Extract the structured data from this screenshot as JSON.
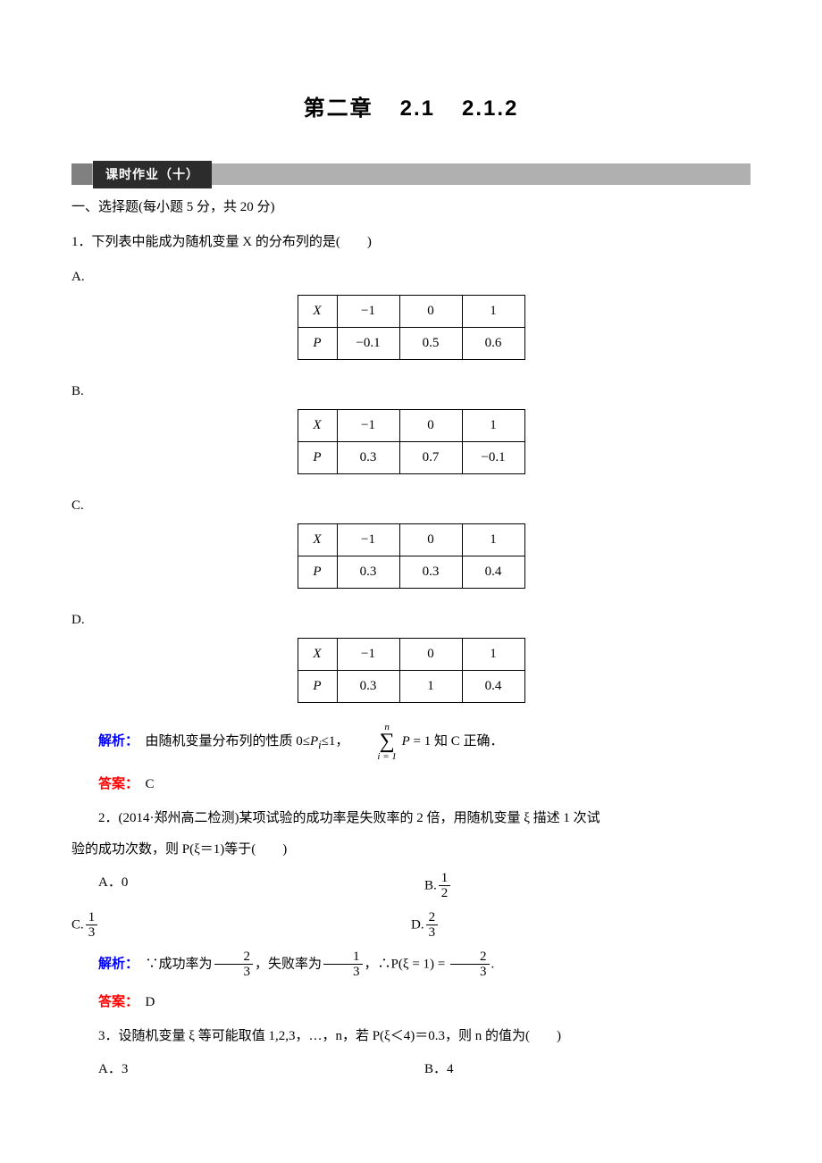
{
  "page": {
    "background": "#ffffff",
    "text_color": "#000000",
    "body_font": "SimSun",
    "heading_font": "SimHei",
    "base_fontsize": 15
  },
  "chapter": {
    "part1": "第二章",
    "part2": "2.1",
    "part3": "2.1.2",
    "fontsize": 24
  },
  "section_bar": {
    "label": "课时作业（十）",
    "tab_bg": "#2c2c2c",
    "tab_fg": "#ffffff",
    "bar_gradient_from": "#808080",
    "bar_gradient_to": "#b0b0b0"
  },
  "section1": {
    "heading": "一、选择题(每小题 5 分，共 20 分)"
  },
  "q1": {
    "text": "1．下列表中能成为随机变量 X 的分布列的是(　　)",
    "options": {
      "A": {
        "label": "A.",
        "header": [
          "X",
          "−1",
          "0",
          "1"
        ],
        "row": [
          "P",
          "−0.1",
          "0.5",
          "0.6"
        ]
      },
      "B": {
        "label": "B.",
        "header": [
          "X",
          "−1",
          "0",
          "1"
        ],
        "row": [
          "P",
          "0.3",
          "0.7",
          "−0.1"
        ]
      },
      "C": {
        "label": "C.",
        "header": [
          "X",
          "−1",
          "0",
          "1"
        ],
        "row": [
          "P",
          "0.3",
          "0.3",
          "0.4"
        ]
      },
      "D": {
        "label": "D.",
        "header": [
          "X",
          "−1",
          "0",
          "1"
        ],
        "row": [
          "P",
          "0.3",
          "1",
          "0.4"
        ]
      }
    },
    "analysis_label": "解析：",
    "analysis_pre": "　由随机变量分布列的性质 0≤",
    "analysis_pi": "P",
    "analysis_pi_sub": "i",
    "analysis_mid": "≤1，",
    "sum_top": "n",
    "sum_bot": "i = 1",
    "sum_body": "P",
    "sum_eq": " = 1 知 C 正确．",
    "answer_label": "答案：",
    "answer": "　C"
  },
  "q2": {
    "text_pre": "2．(2014·郑州高二检测)某项试验的成功率是失败率的 2 倍，用随机变量 ξ 描述 1 次试",
    "text_cont": "验的成功次数，则 P(ξ＝1)等于(　　)",
    "optA_label": "A．0",
    "optB_label": "B.",
    "optB_num": "1",
    "optB_den": "2",
    "optC_label": "C.",
    "optC_num": "1",
    "optC_den": "3",
    "optD_label": "D.",
    "optD_num": "2",
    "optD_den": "3",
    "analysis_label": "解析：",
    "analysis_t1": "　∵成功率为",
    "f1_num": "2",
    "f1_den": "3",
    "analysis_t2": "，失败率为",
    "f2_num": "1",
    "f2_den": "3",
    "analysis_t3": "，∴P(ξ = 1) = ",
    "f3_num": "2",
    "f3_den": "3",
    "analysis_t4": ".",
    "answer_label": "答案：",
    "answer": "　D"
  },
  "q3": {
    "text": "3．设随机变量 ξ 等可能取值 1,2,3，…，n，若 P(ξ＜4)＝0.3，则 n 的值为(　　)",
    "optA": "A．3",
    "optB": "B．4"
  },
  "colors": {
    "analysis": "#0000ff",
    "answer": "#ff0000",
    "table_border": "#000000"
  },
  "table_style": {
    "header_col_width": 44,
    "value_col_width": 70,
    "cell_padding": 4
  }
}
